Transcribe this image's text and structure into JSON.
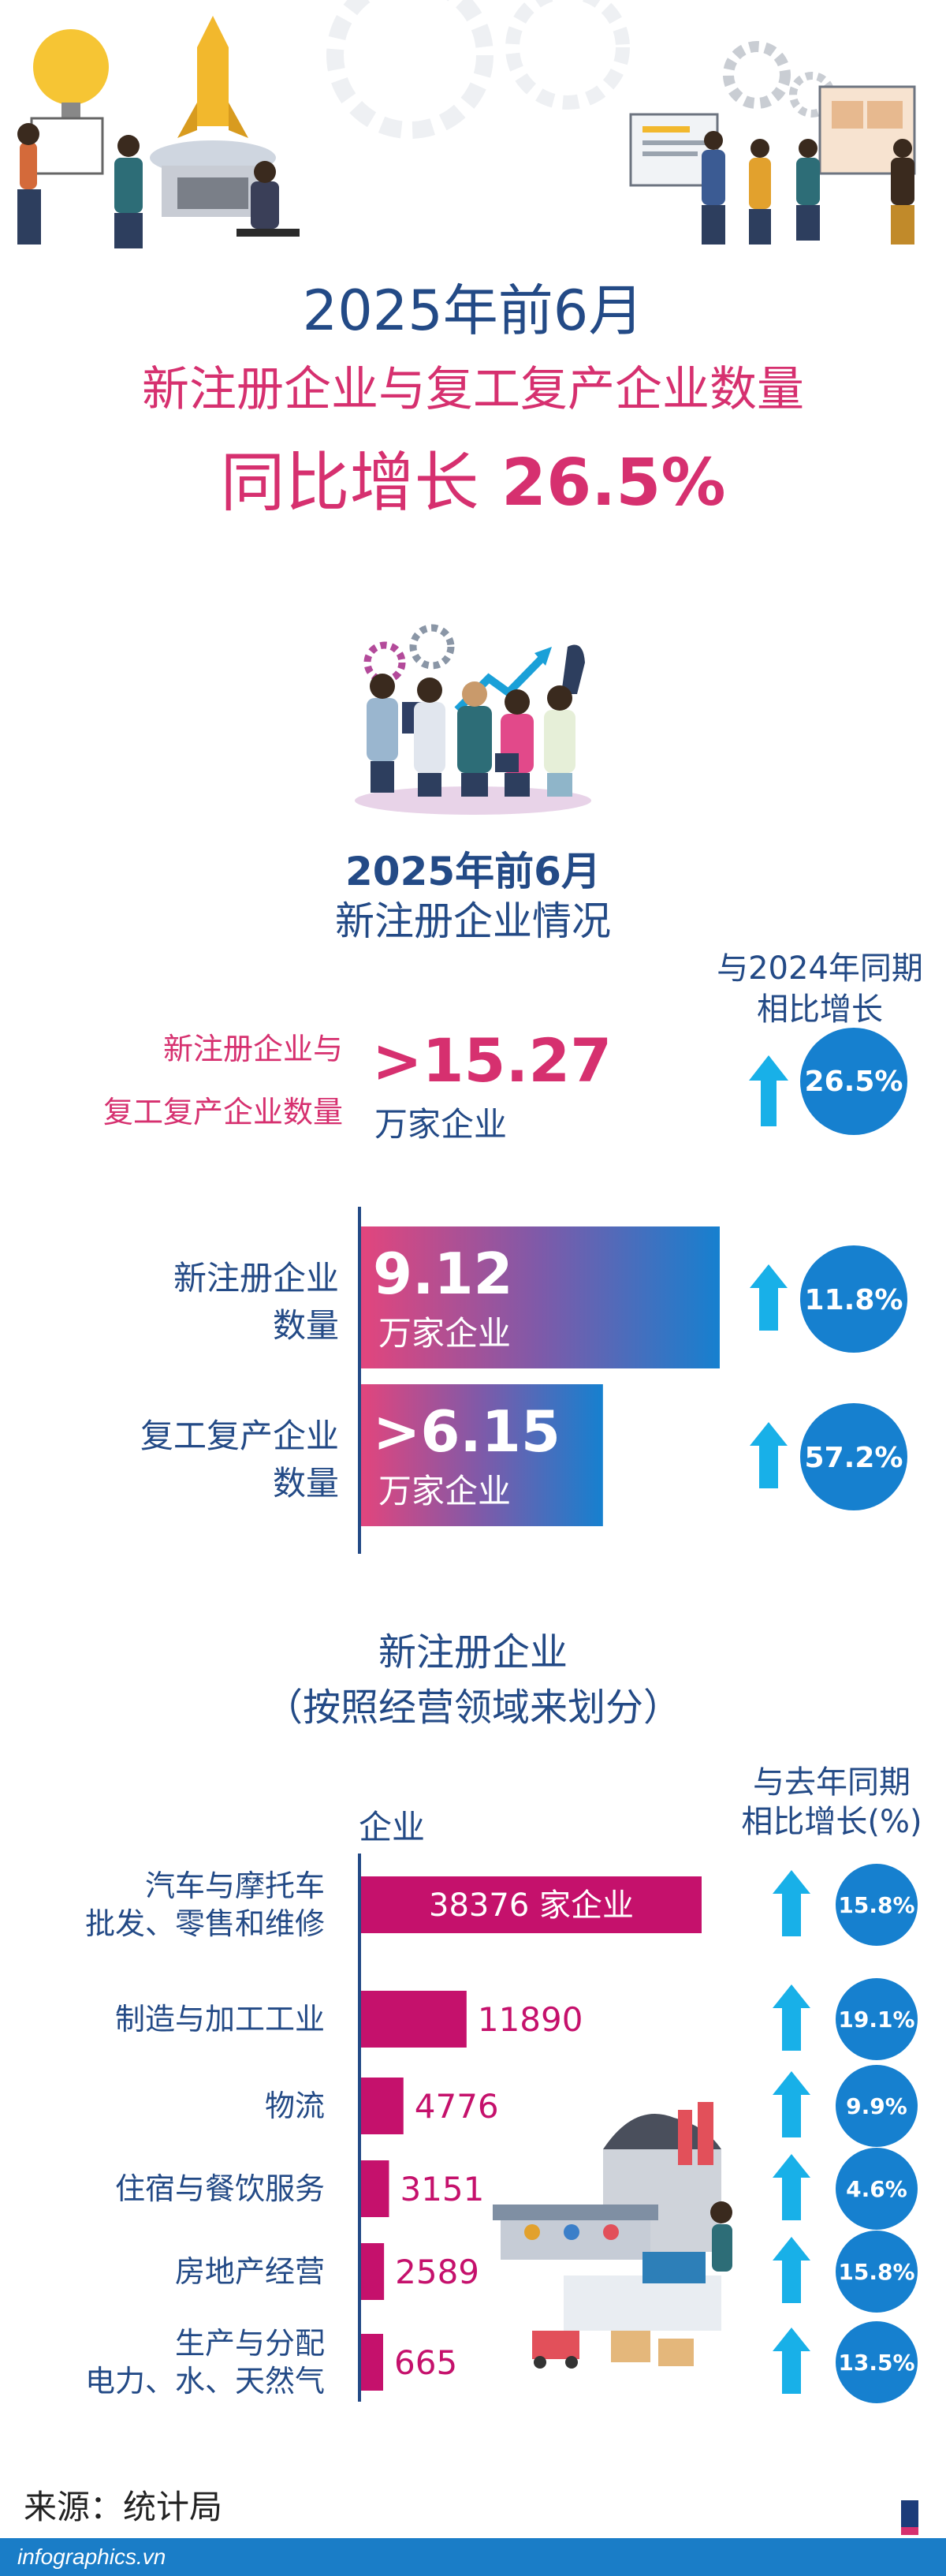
{
  "header": {
    "year": "2025年前6月",
    "subtitle": "新注册企业与复工复产企业数量",
    "growth_label": "同比增长",
    "growth_value": "26.5%"
  },
  "section1": {
    "year": "2025年前6月",
    "title": "新注册企业情况",
    "compare_header_line1": "与2024年同期",
    "compare_header_line2": "相比增长",
    "total": {
      "label_line1": "新注册企业与",
      "label_line2": "复工复产企业数量",
      "value": ">15.27",
      "unit": "万家企业",
      "growth": "26.5%"
    }
  },
  "section2": {
    "title_line1": "新注册企业",
    "title_line2": "（按照经营领域来划分）",
    "axis_label": "企业",
    "compare_header_line1": "与去年同期",
    "compare_header_line2": "相比增长(%)",
    "first_value_suffix": "家企业"
  },
  "source": "来源：统计局",
  "footer": "infographics.vn",
  "colors": {
    "navy": "#234a86",
    "pink": "#d6306f",
    "magenta_bar": "#c5116c",
    "blue_circle": "#1680cf",
    "cyan_arrow": "#18b0e8",
    "gradient_start": "#e2457d",
    "gradient_end": "#1680cf"
  },
  "chart_data": [
    {
      "type": "bar",
      "orientation": "horizontal",
      "categories": [
        "新注册企业数量",
        "复工复产企业数量"
      ],
      "category_labels": [
        [
          "新注册企业",
          "数量"
        ],
        [
          "复工复产企业",
          "数量"
        ]
      ],
      "values": [
        9.12,
        6.15
      ],
      "value_labels": [
        "9.12",
        ">6.15"
      ],
      "unit": "万家企业",
      "growth": [
        "11.8%",
        "57.2%"
      ]
    },
    {
      "type": "bar",
      "orientation": "horizontal",
      "categories": [
        "汽车与摩托车批发、零售和维修",
        "制造与加工工业",
        "物流",
        "住宿与餐饮服务",
        "房地产经营",
        "生产与分配电力、水、天然气"
      ],
      "category_labels": [
        [
          "汽车与摩托车",
          "批发、零售和维修"
        ],
        [
          "制造与加工工业"
        ],
        [
          "物流"
        ],
        [
          "住宿与餐饮服务"
        ],
        [
          "房地产经营"
        ],
        [
          "生产与分配",
          "电力、水、天然气"
        ]
      ],
      "values": [
        38376,
        11890,
        4776,
        3151,
        2589,
        665
      ],
      "value_labels": [
        "38376",
        "11890",
        "4776",
        "3151",
        "2589",
        "665"
      ],
      "growth": [
        "15.8%",
        "19.1%",
        "9.9%",
        "4.6%",
        "15.8%",
        "13.5%"
      ]
    }
  ]
}
